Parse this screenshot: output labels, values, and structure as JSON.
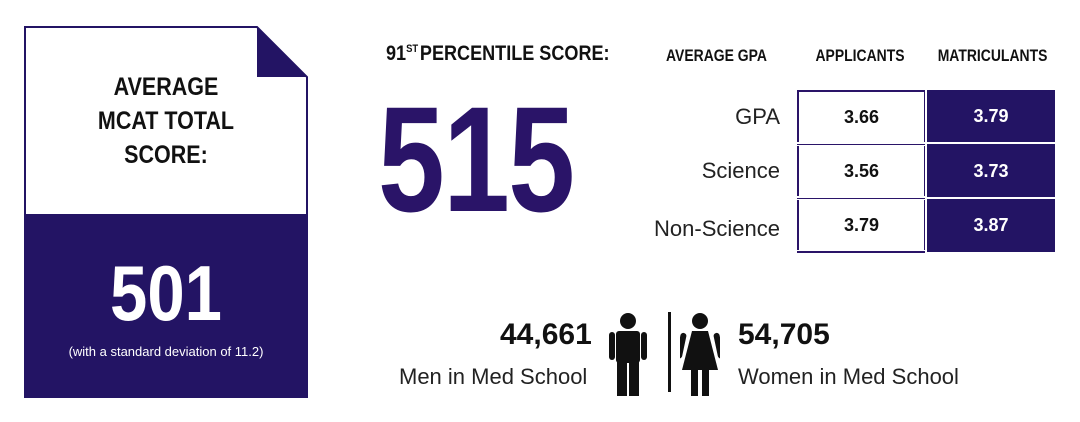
{
  "mcat_card": {
    "title": "AVERAGE\nMCAT TOTAL\nSCORE:",
    "value": "501",
    "note": "(with a standard deviation of 11.2)"
  },
  "percentile": {
    "title_number": "91",
    "title_suffix": "ST",
    "title_rest": "PERCENTILE SCORE:",
    "value": "515"
  },
  "chart_data": {
    "type": "table",
    "headers": [
      "AVERAGE GPA",
      "APPLICANTS",
      "MATRICULANTS"
    ],
    "rows": [
      {
        "label": "GPA",
        "applicants": "3.66",
        "matriculants": "3.79"
      },
      {
        "label": "Science",
        "applicants": "3.56",
        "matriculants": "3.73"
      },
      {
        "label": "Non-Science",
        "applicants": "3.79",
        "matriculants": "3.87"
      }
    ]
  },
  "gender": {
    "men_count": "44,661",
    "men_label": "Men in Med School",
    "women_count": "54,705",
    "women_label": "Women in Med School",
    "men_icon": "man-icon",
    "women_icon": "woman-icon"
  },
  "colors": {
    "brand_purple": "#231464",
    "text_dark": "#111111"
  }
}
